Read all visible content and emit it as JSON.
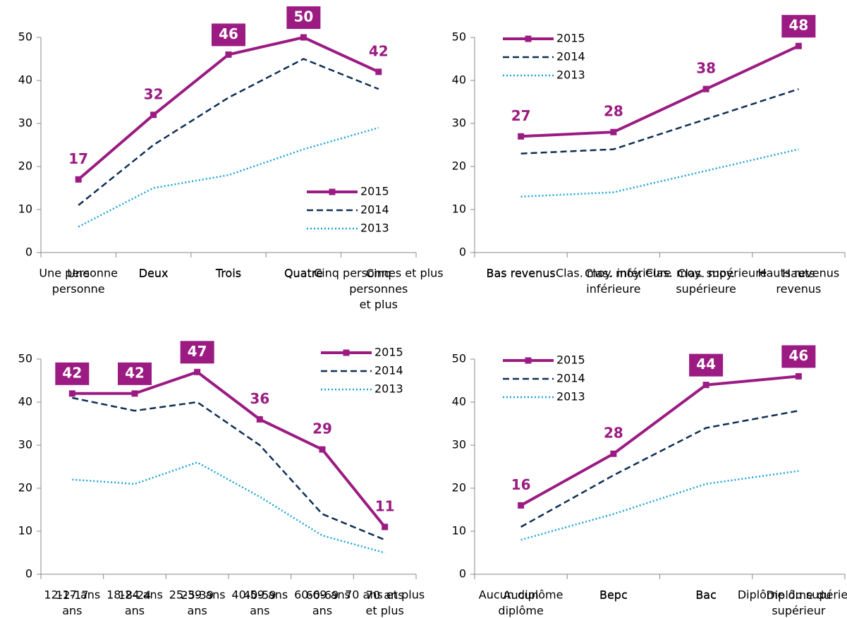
{
  "chart_data": [
    {
      "type": "line",
      "legend": "lower right",
      "ylim": [
        0,
        50
      ],
      "yticks": [
        0,
        10,
        20,
        30,
        40,
        50
      ],
      "categories": [
        "Une\npersonne",
        "Deux",
        "Trois",
        "Quatre",
        "Cinq\npersonnes\net plus"
      ],
      "series": [
        {
          "name": "2015",
          "color": "#9b1b82",
          "dash": "solid",
          "markers": true,
          "values": [
            17,
            32,
            46,
            50,
            42
          ],
          "boxed_labels": [
            false,
            false,
            true,
            true,
            false
          ]
        },
        {
          "name": "2014",
          "color": "#0e2f55",
          "dash": "dashed",
          "values": [
            11,
            25,
            36,
            45,
            38
          ]
        },
        {
          "name": "2013",
          "color": "#1ca3d9",
          "dash": "dotted",
          "values": [
            6,
            15,
            18,
            24,
            29
          ]
        }
      ]
    },
    {
      "type": "line",
      "legend": "upper left",
      "ylim": [
        0,
        50
      ],
      "yticks": [
        0,
        10,
        20,
        30,
        40,
        50
      ],
      "categories": [
        "Bas revenus",
        "Clas. moy.\ninférieure",
        "Clas. moy.\nsupérieure",
        "Hauts\nrevenus"
      ],
      "series": [
        {
          "name": "2015",
          "color": "#9b1b82",
          "dash": "solid",
          "markers": true,
          "values": [
            27,
            28,
            38,
            48
          ],
          "boxed_labels": [
            false,
            false,
            false,
            true
          ]
        },
        {
          "name": "2014",
          "color": "#0e2f55",
          "dash": "dashed",
          "values": [
            23,
            24,
            31,
            38
          ]
        },
        {
          "name": "2013",
          "color": "#1ca3d9",
          "dash": "dotted",
          "values": [
            13,
            14,
            19,
            24
          ]
        }
      ]
    },
    {
      "type": "line",
      "legend": "upper right",
      "ylim": [
        0,
        50
      ],
      "yticks": [
        0,
        10,
        20,
        30,
        40,
        50
      ],
      "categories": [
        "12-17\nans",
        "18-24\nans",
        "25-39\nans",
        "40-59\nans",
        "60-69\nans",
        "70 ans\net plus"
      ],
      "series": [
        {
          "name": "2015",
          "color": "#9b1b82",
          "dash": "solid",
          "markers": true,
          "values": [
            42,
            42,
            47,
            36,
            29,
            11
          ],
          "boxed_labels": [
            true,
            true,
            true,
            false,
            false,
            false
          ]
        },
        {
          "name": "2014",
          "color": "#0e2f55",
          "dash": "dashed",
          "values": [
            41,
            38,
            40,
            30,
            14,
            8
          ]
        },
        {
          "name": "2013",
          "color": "#1ca3d9",
          "dash": "dotted",
          "values": [
            22,
            21,
            26,
            18,
            9,
            5
          ]
        }
      ]
    },
    {
      "type": "line",
      "legend": "upper left",
      "ylim": [
        0,
        50
      ],
      "yticks": [
        0,
        10,
        20,
        30,
        40,
        50
      ],
      "categories": [
        "Aucun\ndiplôme",
        "Bepc",
        "Bac",
        "Diplôme du\nsupérieur"
      ],
      "series": [
        {
          "name": "2015",
          "color": "#9b1b82",
          "dash": "solid",
          "markers": true,
          "values": [
            16,
            28,
            44,
            46
          ],
          "boxed_labels": [
            false,
            false,
            true,
            true
          ]
        },
        {
          "name": "2014",
          "color": "#0e2f55",
          "dash": "dashed",
          "values": [
            11,
            23,
            34,
            38
          ]
        },
        {
          "name": "2013",
          "color": "#1ca3d9",
          "dash": "dotted",
          "values": [
            8,
            14,
            21,
            24
          ]
        }
      ]
    }
  ]
}
